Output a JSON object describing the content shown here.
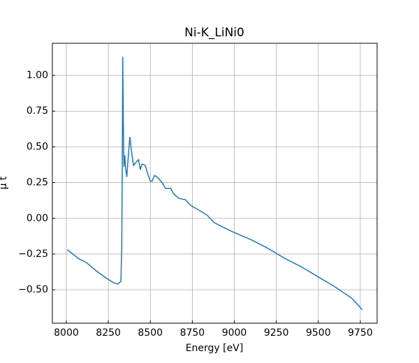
{
  "chart_data": {
    "type": "line",
    "title": "Ni-K_LiNi0",
    "xlabel": "Energy [eV]",
    "ylabel": "μ t",
    "x": [
      8005,
      8040,
      8070,
      8120,
      8180,
      8240,
      8280,
      8307,
      8325,
      8330,
      8333,
      8336,
      8339,
      8343,
      8348,
      8353,
      8360,
      8368,
      8378,
      8390,
      8400,
      8420,
      8430,
      8440,
      8450,
      8470,
      8485,
      8500,
      8510,
      8525,
      8540,
      8570,
      8590,
      8620,
      8640,
      8670,
      8710,
      8740,
      8800,
      8840,
      8880,
      8930,
      9000,
      9100,
      9200,
      9300,
      9400,
      9500,
      9600,
      9700,
      9762
    ],
    "series": [
      {
        "name": "Ni-K_LiNi0",
        "color": "#1f77b4",
        "values": [
          -0.22,
          -0.25,
          -0.28,
          -0.31,
          -0.37,
          -0.42,
          -0.45,
          -0.46,
          -0.44,
          -0.2,
          0.4,
          1.13,
          0.7,
          0.36,
          0.44,
          0.35,
          0.29,
          0.42,
          0.57,
          0.45,
          0.37,
          0.4,
          0.41,
          0.34,
          0.38,
          0.37,
          0.31,
          0.26,
          0.26,
          0.3,
          0.29,
          0.25,
          0.21,
          0.21,
          0.17,
          0.14,
          0.13,
          0.09,
          0.05,
          0.02,
          -0.03,
          -0.06,
          -0.1,
          -0.15,
          -0.21,
          -0.28,
          -0.34,
          -0.41,
          -0.48,
          -0.56,
          -0.64
        ]
      }
    ],
    "xlim": [
      7917,
      9850
    ],
    "ylim": [
      -0.734,
      1.225
    ],
    "xticks": [
      8000,
      8250,
      8500,
      8750,
      9000,
      9250,
      9500,
      9750
    ],
    "yticks": [
      {
        "value": -0.5,
        "label": "−0.50"
      },
      {
        "value": -0.25,
        "label": "−0.25"
      },
      {
        "value": 0,
        "label": "0.00"
      },
      {
        "value": 0.25,
        "label": "0.25"
      },
      {
        "value": 0.5,
        "label": "0.50"
      },
      {
        "value": 0.75,
        "label": "0.75"
      },
      {
        "value": 1,
        "label": "1.00"
      }
    ],
    "grid": true
  }
}
